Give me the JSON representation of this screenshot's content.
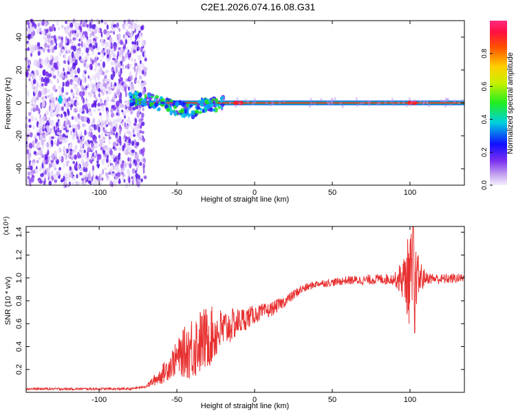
{
  "title": "C2E1.2026.074.16.08.G31",
  "colors": {
    "snr_line": "#e83030",
    "frame": "#000000",
    "carrier": "#ee2a3c"
  },
  "chart_data": [
    {
      "type": "heatmap",
      "name": "spectrogram",
      "xlabel": "Height of straight line (km)",
      "ylabel": "Frequency (Hz)",
      "xlim": [
        -147,
        135
      ],
      "ylim": [
        -50,
        50
      ],
      "xticks": [
        -100,
        -50,
        0,
        50,
        100
      ],
      "yticks": [
        -40,
        -20,
        0,
        20,
        40
      ],
      "noise_region_x": [
        -147,
        -70
      ],
      "carrier_freq": 0,
      "carrier_start_x": -80,
      "cluster_freq_track": [
        [
          -80,
          3
        ],
        [
          -70,
          2
        ],
        [
          -60,
          -1
        ],
        [
          -50,
          -3
        ],
        [
          -40,
          -5
        ],
        [
          -35,
          -2
        ],
        [
          -30,
          -1
        ],
        [
          -20,
          0
        ],
        [
          0,
          0
        ],
        [
          135,
          0
        ]
      ],
      "colorbar": {
        "label": "Normalized spectral amplitude",
        "range": [
          0,
          1
        ],
        "ticks": [
          "0.0",
          "0.2",
          "0.4",
          "0.6",
          "0.8"
        ]
      }
    },
    {
      "type": "line",
      "name": "snr",
      "xlabel": "Height of straight line (km)",
      "ylabel": "SNR (10 * v/v)",
      "multiplier_label": "(x10⁴)",
      "xlim": [
        -147,
        135
      ],
      "ylim": [
        0,
        1.45
      ],
      "xticks": [
        -100,
        -50,
        0,
        50,
        100
      ],
      "yticks": [
        "0.2",
        "0.4",
        "0.6",
        "0.8",
        "1.0",
        "1.2",
        "1.4"
      ],
      "envelope_mean": [
        [
          -147,
          0.03
        ],
        [
          -80,
          0.03
        ],
        [
          -70,
          0.05
        ],
        [
          -60,
          0.15
        ],
        [
          -50,
          0.3
        ],
        [
          -40,
          0.4
        ],
        [
          -30,
          0.48
        ],
        [
          -20,
          0.55
        ],
        [
          -10,
          0.62
        ],
        [
          0,
          0.68
        ],
        [
          10,
          0.72
        ],
        [
          20,
          0.8
        ],
        [
          30,
          0.9
        ],
        [
          40,
          0.95
        ],
        [
          50,
          0.96
        ],
        [
          60,
          0.98
        ],
        [
          70,
          0.98
        ],
        [
          80,
          0.99
        ],
        [
          90,
          0.99
        ],
        [
          100,
          1.0
        ],
        [
          110,
          1.0
        ],
        [
          120,
          0.99
        ],
        [
          135,
          1.0
        ]
      ],
      "envelope_amplitude": [
        [
          -147,
          0.01
        ],
        [
          -70,
          0.01
        ],
        [
          -60,
          0.08
        ],
        [
          -50,
          0.15
        ],
        [
          -40,
          0.3
        ],
        [
          -30,
          0.28
        ],
        [
          -20,
          0.18
        ],
        [
          -10,
          0.12
        ],
        [
          0,
          0.08
        ],
        [
          20,
          0.05
        ],
        [
          40,
          0.03
        ],
        [
          90,
          0.05
        ],
        [
          96,
          0.2
        ],
        [
          100,
          0.45
        ],
        [
          104,
          0.25
        ],
        [
          110,
          0.05
        ],
        [
          135,
          0.04
        ]
      ],
      "peak": {
        "x": 102,
        "y": 1.45
      },
      "trough": {
        "x": 103,
        "y": 0.52
      }
    }
  ]
}
